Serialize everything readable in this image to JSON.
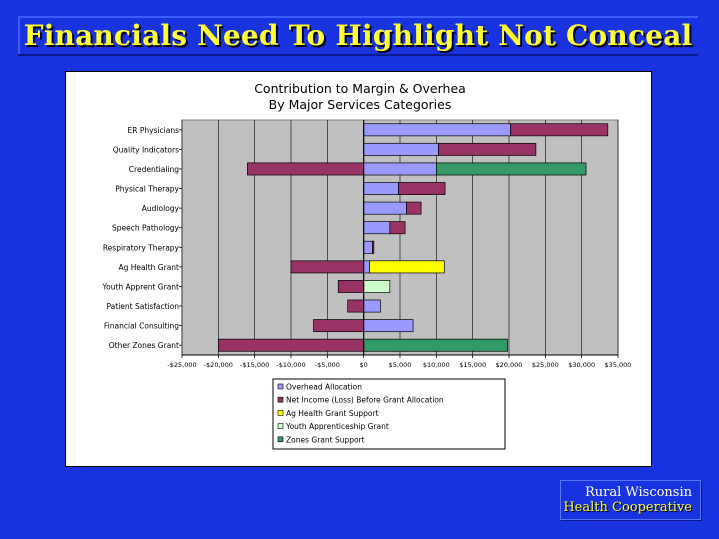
{
  "slide": {
    "title": "Financials Need To Highlight Not Conceal",
    "logo_line1": "Rural Wisconsin",
    "logo_line2": "Health Cooperative"
  },
  "colors": {
    "background": "#1a33e0",
    "title": "#ffff33",
    "plot_area": "#c0c0c0",
    "overhead": "#9999ff",
    "net_income": "#993366",
    "ag_grant": "#ffff00",
    "youth_grant": "#ccffcc",
    "zones_grant": "#339966"
  },
  "chart_data": {
    "type": "bar",
    "orientation": "horizontal",
    "stacked": true,
    "title": "Contribution to Margin & Overhea",
    "subtitle": "By Major Services Categories",
    "grid": true,
    "legend_position": "bottom",
    "xlim": [
      -25000,
      35000
    ],
    "x_ticks": [
      "-$25,000",
      "-$20,000",
      "-$15,000",
      "-$10,000",
      "-$5,000",
      "$0",
      "$5,000",
      "$10,000",
      "$15,000",
      "$20,000",
      "$25,000",
      "$30,000",
      "$35,000"
    ],
    "categories": [
      "ER Physicians",
      "Quality Indicators",
      "Credentialing",
      "Physical Therapy",
      "Audiology",
      "Speech Pathology",
      "Respiratory Therapy",
      "Ag Health Grant",
      "Youth Apprent Grant",
      "Patient Satisfaction",
      "Financial Consulting",
      "Other Zones Grant"
    ],
    "series": [
      {
        "name": "Overhead Allocation",
        "color": "#9999ff",
        "values": [
          20200,
          10300,
          10000,
          4800,
          5900,
          3600,
          1200,
          800,
          0,
          2300,
          6800,
          0
        ]
      },
      {
        "name": "Net Income (Loss) Before Grant Allocation",
        "color": "#993366",
        "values": [
          13400,
          13400,
          -16000,
          6400,
          2000,
          2100,
          200,
          -10000,
          -3500,
          -2200,
          -6900,
          -20000
        ]
      },
      {
        "name": "Ag Health Grant Support",
        "color": "#ffff00",
        "values": [
          0,
          0,
          0,
          0,
          0,
          0,
          0,
          10300,
          0,
          0,
          0,
          0
        ]
      },
      {
        "name": "Youth Apprenticeship Grant",
        "color": "#ccffcc",
        "values": [
          0,
          0,
          0,
          0,
          0,
          0,
          0,
          0,
          3600,
          0,
          0,
          0
        ]
      },
      {
        "name": "Zones Grant Support",
        "color": "#339966",
        "values": [
          0,
          0,
          20600,
          0,
          0,
          0,
          0,
          0,
          0,
          0,
          0,
          19800
        ]
      }
    ]
  }
}
